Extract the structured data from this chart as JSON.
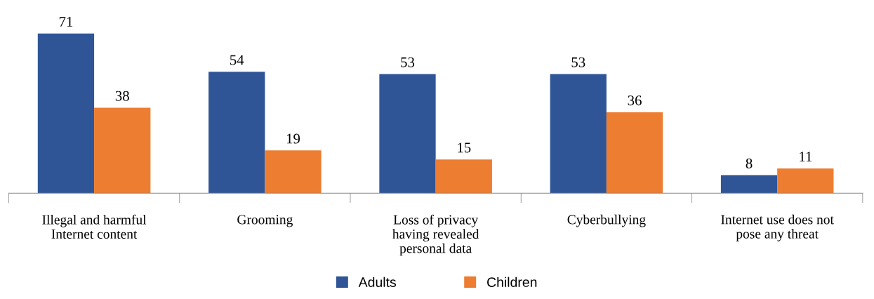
{
  "chart_data": {
    "type": "bar",
    "categories": [
      "Illegal and harmful\nInternet content",
      "Grooming",
      "Loss of privacy\nhaving revealed\npersonal data",
      "Cyberbullying",
      "Internet use does not\npose any threat"
    ],
    "series": [
      {
        "name": "Adults",
        "color": "#2f5597",
        "values": [
          71,
          54,
          53,
          53,
          8
        ]
      },
      {
        "name": "Children",
        "color": "#ed7d31",
        "values": [
          38,
          19,
          15,
          36,
          11
        ]
      }
    ],
    "data_labels": true,
    "legend": "bottom",
    "grid": false
  }
}
